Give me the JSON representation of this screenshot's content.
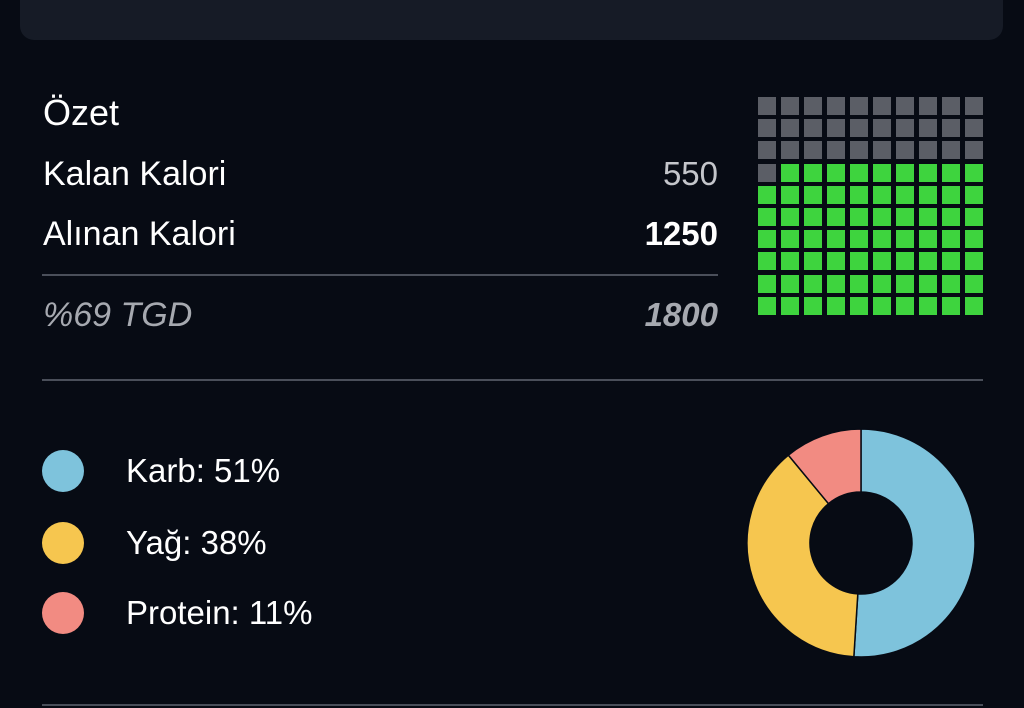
{
  "summary": {
    "title": "Özet",
    "remaining_label": "Kalan Kalori",
    "remaining_value": "550",
    "consumed_label": "Alınan Kalori",
    "consumed_value": "1250",
    "percent_label": "%69 TGD",
    "target_value": "1800"
  },
  "waffle": {
    "total_cells": 100,
    "filled_cells": 69,
    "filled_color": "#3ed43e",
    "empty_color": "#5b5e66"
  },
  "macros": [
    {
      "label": "Karb: 51%",
      "percent": 51,
      "color": "#7ec3dc"
    },
    {
      "label": "Yağ: 38%",
      "percent": 38,
      "color": "#f6c64f"
    },
    {
      "label": "Protein: 11%",
      "percent": 11,
      "color": "#f28b82"
    }
  ]
}
